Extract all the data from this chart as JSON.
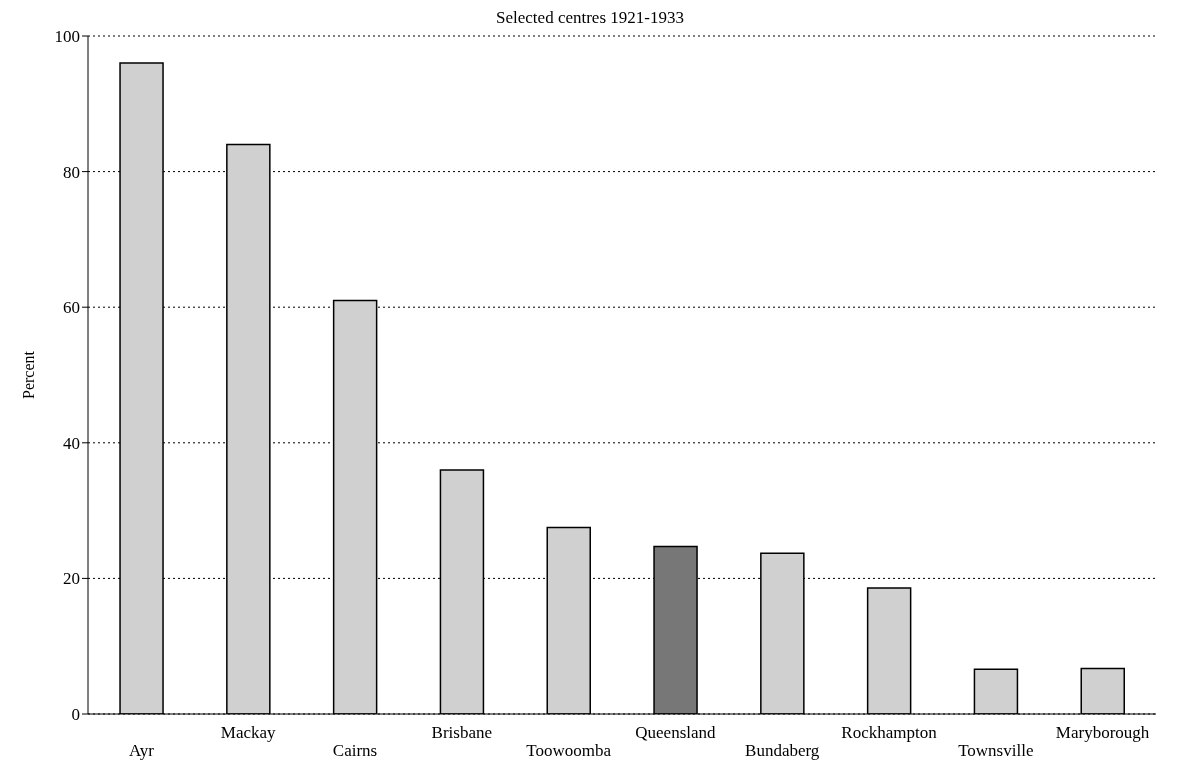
{
  "chart_data": {
    "type": "bar",
    "title": "Selected centres 1921-1933",
    "ylabel": "Percent",
    "categories": [
      "Ayr",
      "Mackay",
      "Cairns",
      "Brisbane",
      "Toowoomba",
      "Queensland",
      "Bundaberg",
      "Rockhampton",
      "Townsville",
      "Maryborough"
    ],
    "values": [
      96,
      84,
      61,
      36,
      27.5,
      24.7,
      23.7,
      18.6,
      6.6,
      6.7
    ],
    "colors": [
      "#d0d0d0",
      "#d0d0d0",
      "#d0d0d0",
      "#d0d0d0",
      "#d0d0d0",
      "#777777",
      "#d0d0d0",
      "#d0d0d0",
      "#d0d0d0",
      "#d0d0d0"
    ],
    "ylim": [
      0,
      100
    ],
    "yticks": [
      0,
      20,
      40,
      60,
      80,
      100
    ],
    "grid": "y"
  }
}
